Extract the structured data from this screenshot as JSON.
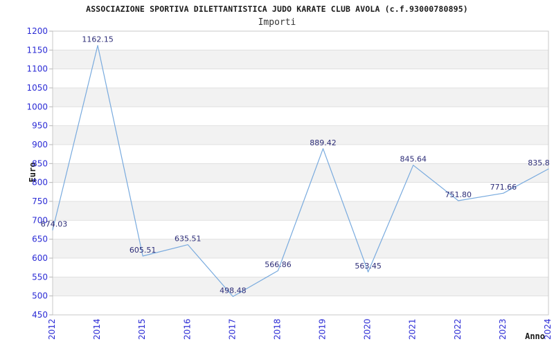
{
  "chart_data": {
    "type": "line",
    "title": "ASSOCIAZIONE SPORTIVA DILETTANTISTICA JUDO KARATE CLUB AVOLA (c.f.93000780895)",
    "subtitle": "Importi",
    "xlabel": "Anno",
    "ylabel": "Euro",
    "categories": [
      "2012",
      "2014",
      "2015",
      "2016",
      "2017",
      "2018",
      "2019",
      "2020",
      "2021",
      "2022",
      "2023",
      "2024"
    ],
    "values": [
      674.03,
      1162.15,
      605.51,
      635.51,
      498.48,
      566.86,
      889.42,
      563.45,
      845.64,
      751.8,
      771.66,
      835.8
    ],
    "point_labels": [
      "674.03",
      "1162.15",
      "605.51",
      "635.51",
      "498.48",
      "566.86",
      "889.42",
      "563.45",
      "845.64",
      "751.80",
      "771.66",
      "835.8"
    ],
    "ylim": [
      450,
      1200
    ],
    "ytick_step": 50,
    "grid": true,
    "banding": true,
    "legend_position": "none",
    "colors": {
      "line": "#78aade",
      "tick_label": "#2b2bd5",
      "point_label": "#2c2c77",
      "band": "#f2f2f2",
      "gridline": "#e0e0e0",
      "plot_border": "#c9c9c9",
      "axis_tick": "#b5b5b5",
      "title": "#1a1a1a",
      "background": "#ffffff"
    }
  }
}
